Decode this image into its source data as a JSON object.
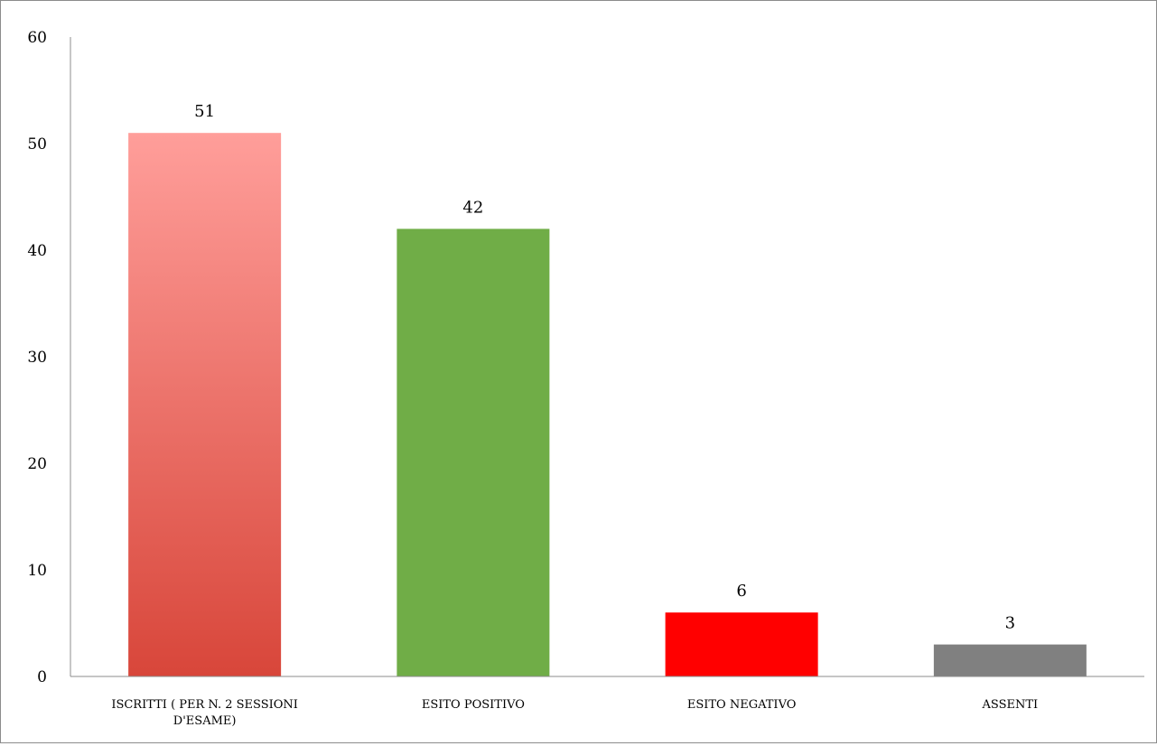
{
  "chart_data": {
    "type": "bar",
    "categories": [
      [
        "ISCRITTI ( PER N. 2 SESSIONI",
        "D'ESAME)"
      ],
      [
        "ESITO POSITIVO"
      ],
      [
        "ESITO NEGATIVO"
      ],
      [
        "ASSENTI"
      ]
    ],
    "values": [
      51,
      42,
      6,
      3
    ],
    "data_labels": [
      "51",
      "42",
      "6",
      "3"
    ],
    "bar_colors": [
      {
        "gradient": [
          "#ff9e9a",
          "#d8463a"
        ]
      },
      {
        "solid": "#70ad47"
      },
      {
        "solid": "#ff0000"
      },
      {
        "solid": "#808080"
      }
    ],
    "ylim": [
      0,
      60
    ],
    "yticks": [
      0,
      10,
      20,
      30,
      40,
      50,
      60
    ],
    "title": "",
    "xlabel": "",
    "ylabel": "",
    "grid": false,
    "legend": "none",
    "axis_color": "#8c8c8c"
  }
}
